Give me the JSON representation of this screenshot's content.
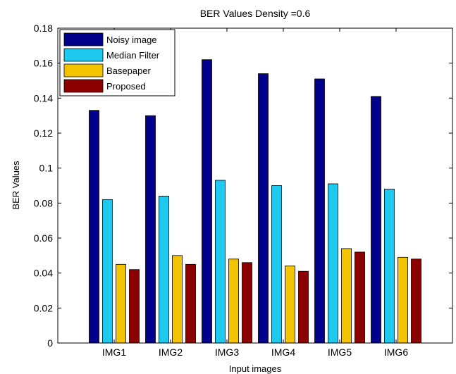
{
  "chart_data": {
    "type": "bar",
    "title": "BER Values Density =0.6",
    "xlabel": "Input images",
    "ylabel": "BER Values",
    "categories": [
      "IMG1",
      "IMG2",
      "IMG3",
      "IMG4",
      "IMG5",
      "IMG6"
    ],
    "ylim": [
      0,
      0.18
    ],
    "yticks": [
      0,
      0.02,
      0.04,
      0.06,
      0.08,
      0.1,
      0.12,
      0.14,
      0.16,
      0.18
    ],
    "ytick_labels": [
      "0",
      "0.02",
      "0.04",
      "0.06",
      "0.08",
      "0.1",
      "0.12",
      "0.14",
      "0.16",
      "0.18"
    ],
    "grid": false,
    "legend_position": "top-left",
    "series": [
      {
        "name": "Noisy image",
        "color": "#00008b",
        "values": [
          0.133,
          0.13,
          0.162,
          0.154,
          0.151,
          0.141
        ]
      },
      {
        "name": "Median Filter",
        "color": "#1ec8ee",
        "values": [
          0.082,
          0.084,
          0.093,
          0.09,
          0.091,
          0.088
        ]
      },
      {
        "name": "Basepaper",
        "color": "#f5c400",
        "values": [
          0.045,
          0.05,
          0.048,
          0.044,
          0.054,
          0.049
        ]
      },
      {
        "name": "Proposed",
        "color": "#8b0000",
        "values": [
          0.042,
          0.045,
          0.046,
          0.041,
          0.052,
          0.048
        ]
      }
    ]
  }
}
